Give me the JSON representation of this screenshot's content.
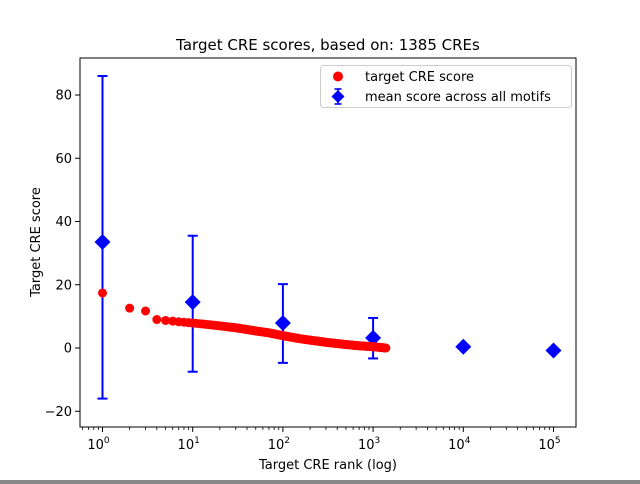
{
  "title": "Target CRE scores, based on: 1385 CREs",
  "axes": {
    "xlabel": "Target CRE rank (log)",
    "ylabel": "Target CRE score"
  },
  "legend": {
    "items": [
      {
        "label": "target CRE score",
        "marker": "red-circle"
      },
      {
        "label": "mean score across all motifs",
        "marker": "blue-diamond-errorbar"
      }
    ]
  },
  "colors": {
    "target_series": "#ff0000",
    "mean_series": "#0000ff",
    "axis": "#000000",
    "legend_border": "#cccccc",
    "background": "#ffffff"
  },
  "chart_data": {
    "type": "scatter",
    "title": "Target CRE scores, based on: 1385 CREs",
    "xlabel": "Target CRE rank (log)",
    "ylabel": "Target CRE score",
    "xscale": "log",
    "yscale": "linear",
    "xlim": [
      0.56,
      178000
    ],
    "ylim": [
      -25,
      92
    ],
    "grid": false,
    "legend_position": "upper right",
    "n_cres": 1385,
    "x_tick_base": "10",
    "x_tick_exponents": [
      0,
      1,
      2,
      3,
      4,
      5
    ],
    "y_ticks": {
      "values": [
        -20,
        0,
        20,
        40,
        60,
        80
      ],
      "labels": [
        "−20",
        "0",
        "20",
        "40",
        "60",
        "80"
      ]
    },
    "series": [
      {
        "name": "target CRE score",
        "type": "scatter",
        "marker": "circle",
        "color": "#ff0000",
        "n_points": 1385,
        "anchors_rank_score": [
          [
            1,
            17.4
          ],
          [
            2,
            12.6
          ],
          [
            3,
            11.7
          ],
          [
            4,
            9.0
          ],
          [
            5,
            8.7
          ],
          [
            7,
            8.3
          ],
          [
            10,
            7.9
          ],
          [
            15,
            7.4
          ],
          [
            20,
            7.0
          ],
          [
            30,
            6.4
          ],
          [
            50,
            5.4
          ],
          [
            70,
            4.8
          ],
          [
            100,
            3.9
          ],
          [
            150,
            3.0
          ],
          [
            200,
            2.5
          ],
          [
            300,
            1.8
          ],
          [
            500,
            1.1
          ],
          [
            700,
            0.7
          ],
          [
            1000,
            0.4
          ],
          [
            1385,
            0.0
          ]
        ]
      },
      {
        "name": "mean score across all motifs",
        "type": "errorbar",
        "marker": "diamond",
        "color": "#0000ff",
        "x": [
          1,
          10,
          100,
          1000,
          10000,
          100000
        ],
        "y": [
          33.5,
          14.5,
          7.9,
          3.2,
          0.4,
          -0.8
        ],
        "err_plus": [
          52.5,
          21.0,
          12.3,
          6.3,
          0,
          0
        ],
        "err_minus": [
          49.5,
          22.0,
          12.6,
          6.5,
          0,
          0
        ]
      }
    ]
  }
}
